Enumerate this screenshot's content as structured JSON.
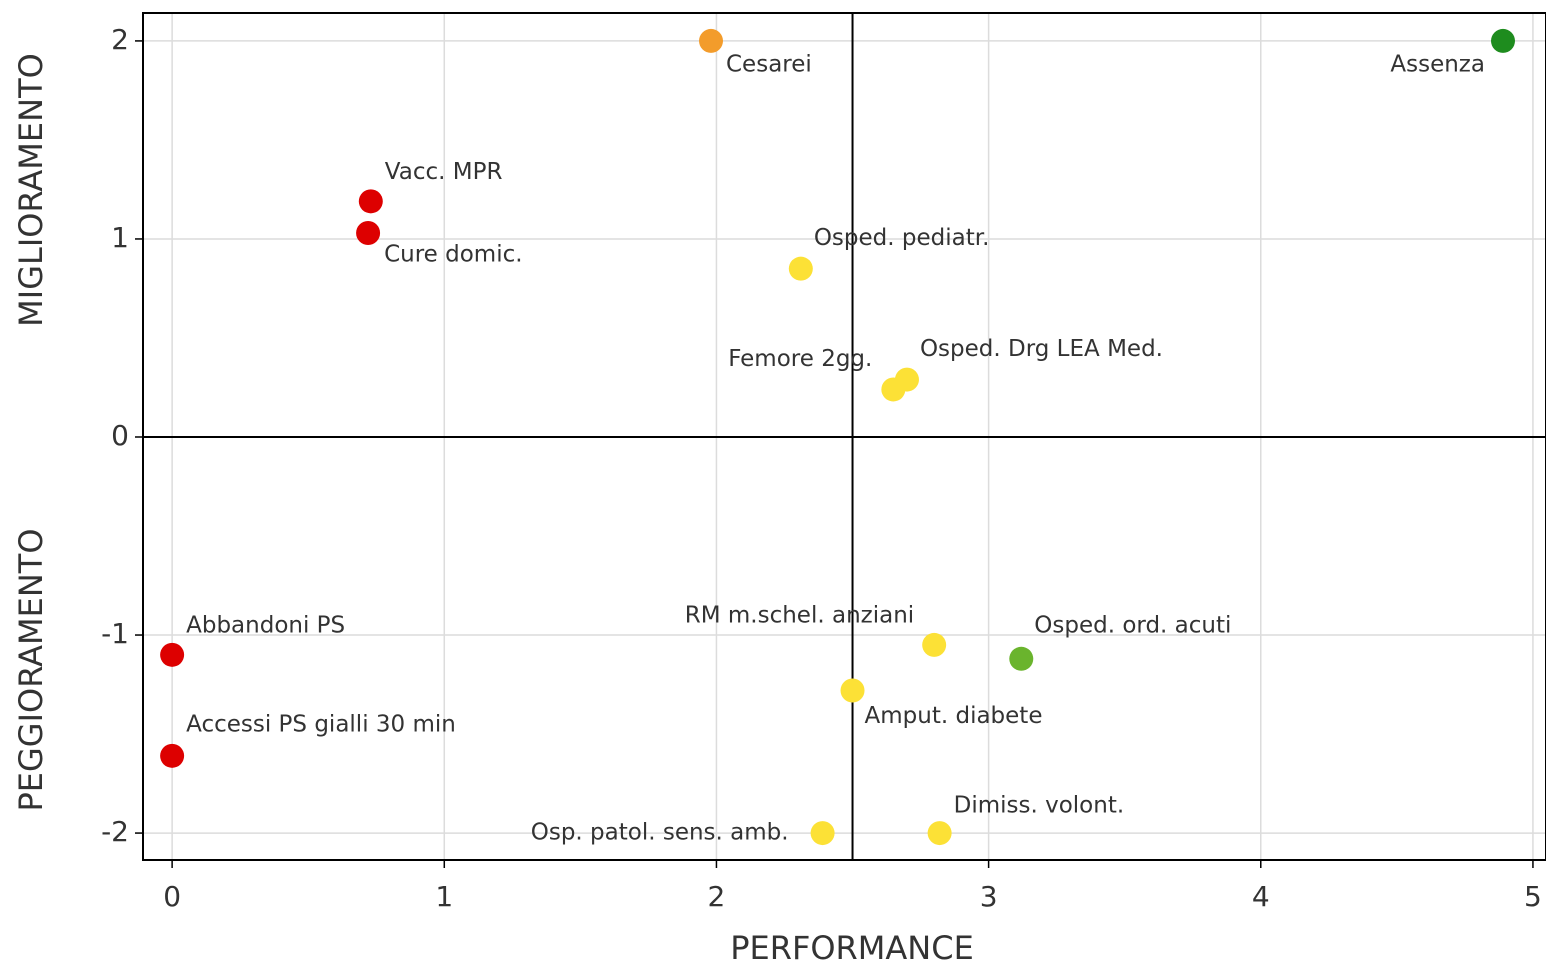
{
  "chart_data": {
    "type": "scatter",
    "xlabel": "PERFORMANCE",
    "ylabels": [
      "MIGLIORAMENTO",
      "PEGGIORAMENTO"
    ],
    "xlim": [
      -0.107,
      5.048
    ],
    "ylim": [
      -2.136,
      2.141
    ],
    "xticks": [
      0,
      1,
      2,
      3,
      4,
      5
    ],
    "yticks": [
      -2,
      -1,
      0,
      1,
      2
    ],
    "grid": true,
    "reference_lines": {
      "x": 2.5,
      "y": 0
    },
    "points": [
      {
        "label": "Cesarei",
        "x": 1.98,
        "y": 2.0,
        "color": "#f39c2b"
      },
      {
        "label": "Assenza",
        "x": 4.89,
        "y": 2.0,
        "color": "#1e8c1e"
      },
      {
        "label": "Vacc. MPR",
        "x": 0.73,
        "y": 1.19,
        "color": "#dd0000"
      },
      {
        "label": "Cure domic.",
        "x": 0.72,
        "y": 1.03,
        "color": "#dd0000"
      },
      {
        "label": "Osped. pediatr.",
        "x": 2.31,
        "y": 0.85,
        "color": "#fce136"
      },
      {
        "label": "Femore 2gg.",
        "x": 2.65,
        "y": 0.24,
        "color": "#fce136"
      },
      {
        "label": "Osped. Drg LEA Med.",
        "x": 2.7,
        "y": 0.29,
        "color": "#fce136"
      },
      {
        "label": "Abbandoni PS",
        "x": 0,
        "y": -1.1,
        "color": "#dd0000"
      },
      {
        "label": "Accessi PS gialli 30 min",
        "x": 0,
        "y": -1.61,
        "color": "#dd0000"
      },
      {
        "label": "RM m.schel. anziani",
        "x": 2.8,
        "y": -1.05,
        "color": "#fce136"
      },
      {
        "label": "Osped.  ord. acuti",
        "x": 3.12,
        "y": -1.12,
        "color": "#6ab42d"
      },
      {
        "label": "Amput. diabete",
        "x": 2.5,
        "y": -1.28,
        "color": "#fce136"
      },
      {
        "label": "Osp. patol. sens. amb.",
        "x": 2.39,
        "y": -2.0,
        "color": "#fce136"
      },
      {
        "label": "Dimiss. volont.",
        "x": 2.82,
        "y": -2.0,
        "color": "#fce136"
      }
    ]
  }
}
